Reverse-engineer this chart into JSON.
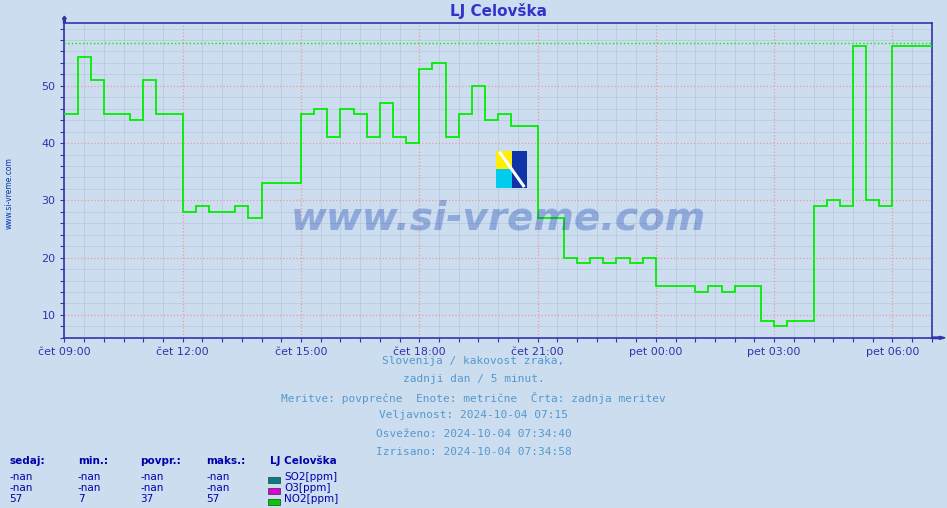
{
  "title": "LJ Celovška",
  "title_color": "#3333cc",
  "bg_color": "#ccddf0",
  "plot_bg_color": "#ccddf0",
  "line_color": "#00ee00",
  "dashed_line_color": "#00ee00",
  "dashed_line_y": 57.5,
  "grid_major_color": "#ee9999",
  "grid_minor_color": "#aabcce",
  "axis_color": "#3333aa",
  "tick_label_color": "#3333aa",
  "xticklabels": [
    "čet 09:00",
    "čet 12:00",
    "čet 15:00",
    "čet 18:00",
    "čet 21:00",
    "pet 00:00",
    "pet 03:00",
    "pet 06:00"
  ],
  "xtick_positions": [
    0,
    18,
    36,
    54,
    72,
    90,
    108,
    126
  ],
  "yticks": [
    10,
    20,
    30,
    40,
    50
  ],
  "ylim": [
    6,
    61
  ],
  "xlim": [
    0,
    132
  ],
  "no2_x": [
    0,
    2,
    2,
    4,
    4,
    6,
    6,
    10,
    10,
    12,
    12,
    14,
    14,
    18,
    18,
    20,
    20,
    22,
    22,
    26,
    26,
    28,
    28,
    30,
    30,
    36,
    36,
    38,
    38,
    40,
    40,
    42,
    42,
    44,
    44,
    46,
    46,
    48,
    48,
    50,
    50,
    52,
    52,
    54,
    54,
    56,
    56,
    58,
    58,
    60,
    60,
    62,
    62,
    64,
    64,
    66,
    66,
    68,
    68,
    72,
    72,
    74,
    74,
    76,
    76,
    78,
    78,
    80,
    80,
    82,
    82,
    84,
    84,
    86,
    86,
    88,
    88,
    90,
    90,
    96,
    96,
    98,
    98,
    100,
    100,
    102,
    102,
    106,
    106,
    108,
    108,
    110,
    110,
    114,
    114,
    116,
    116,
    118,
    118,
    120,
    120,
    122,
    122,
    124,
    124,
    126,
    126,
    132
  ],
  "no2_y": [
    45,
    45,
    55,
    55,
    51,
    51,
    45,
    45,
    44,
    44,
    51,
    51,
    45,
    45,
    28,
    28,
    29,
    29,
    28,
    28,
    29,
    29,
    27,
    27,
    33,
    33,
    45,
    45,
    46,
    46,
    41,
    41,
    46,
    46,
    45,
    45,
    41,
    41,
    47,
    47,
    41,
    41,
    40,
    40,
    53,
    53,
    54,
    54,
    41,
    41,
    45,
    45,
    50,
    50,
    44,
    44,
    45,
    45,
    43,
    43,
    27,
    27,
    27,
    27,
    20,
    20,
    19,
    19,
    20,
    20,
    19,
    19,
    20,
    20,
    19,
    19,
    20,
    20,
    15,
    15,
    14,
    14,
    15,
    15,
    14,
    14,
    15,
    15,
    9,
    9,
    8,
    8,
    9,
    9,
    29,
    29,
    30,
    30,
    29,
    29,
    57,
    57,
    30,
    30,
    29,
    29,
    57,
    57
  ],
  "subtitle_lines": [
    "Slovenija / kakovost zraka,",
    "zadnji dan / 5 minut.",
    "Meritve: povprečne  Enote: metrične  Črta: zadnja meritev",
    "Veljavnost: 2024-10-04 07:15",
    "Osveženo: 2024-10-04 07:34:40",
    "Izrisano: 2024-10-04 07:34:58"
  ],
  "subtitle_color": "#5599cc",
  "table_header": [
    "sedaj:",
    "min.:",
    "povpr.:",
    "maks.:",
    "LJ Celovška"
  ],
  "table_rows": [
    [
      "-nan",
      "-nan",
      "-nan",
      "-nan",
      "SO2[ppm]",
      "#008080"
    ],
    [
      "-nan",
      "-nan",
      "-nan",
      "-nan",
      "O3[ppm]",
      "#dd00dd"
    ],
    [
      "57",
      "7",
      "37",
      "57",
      "NO2[ppm]",
      "#00cc00"
    ]
  ],
  "table_color": "#0000aa",
  "watermark_text": "www.si-vreme.com",
  "watermark_color": "#0033aa",
  "left_label": "www.si-vreme.com",
  "left_label_color": "#0033aa",
  "fig_width": 9.47,
  "fig_height": 5.08,
  "fig_dpi": 100
}
